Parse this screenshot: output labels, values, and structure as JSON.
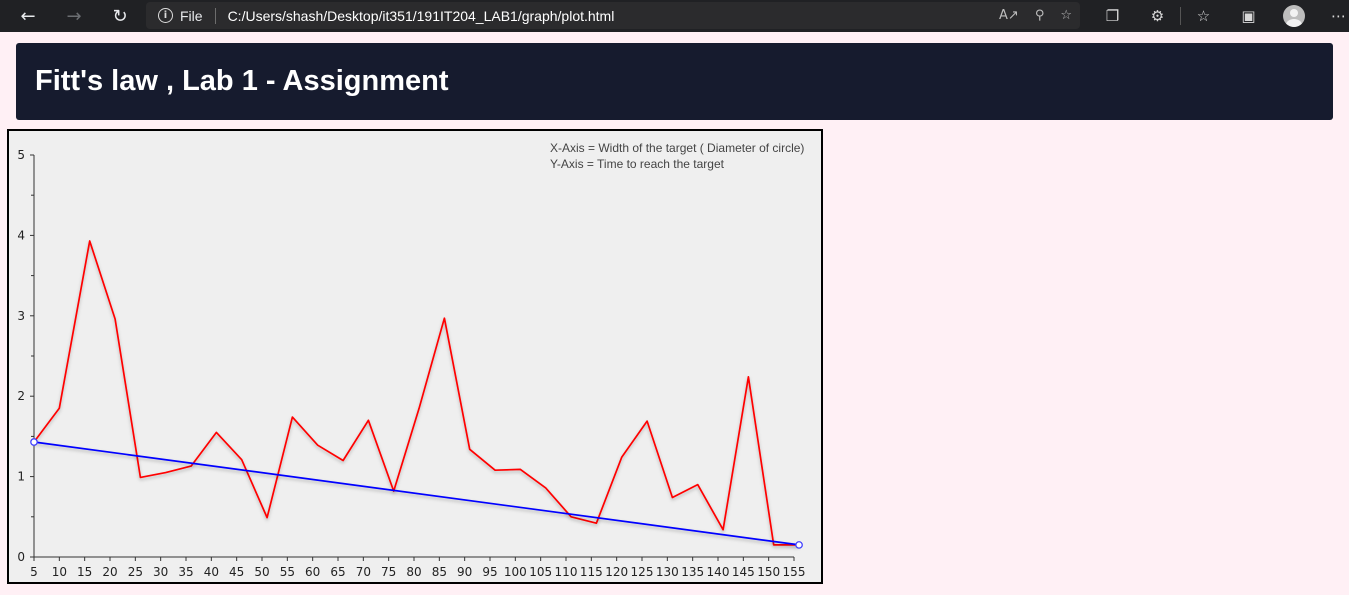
{
  "browser": {
    "file_label": "File",
    "url": "C:/Users/shash/Desktop/it351/191IT204_LAB1/graph/plot.html",
    "icons": [
      "back-icon",
      "forward-icon",
      "refresh-icon",
      "info-icon",
      "read-aloud-icon",
      "zoom-icon",
      "favorite-add-icon",
      "collections-icon",
      "extensions-icon",
      "favorites-icon",
      "tabs-icon",
      "profile-icon",
      "more-icon"
    ]
  },
  "header": {
    "title": "Fitt's law , Lab 1 - Assignment",
    "background": "#161b2e"
  },
  "chart_data": {
    "type": "line",
    "annotations": [
      "X-Axis = Width of the target ( Diameter of circle)",
      "Y-Axis = Time to reach the target"
    ],
    "xlim": [
      5,
      155
    ],
    "ylim": [
      0,
      5
    ],
    "xticks": [
      5,
      10,
      15,
      20,
      25,
      30,
      35,
      40,
      45,
      50,
      55,
      60,
      65,
      70,
      75,
      80,
      85,
      90,
      95,
      100,
      105,
      110,
      115,
      120,
      125,
      130,
      135,
      140,
      145,
      150,
      155
    ],
    "yticks": [
      0,
      1,
      2,
      3,
      4,
      5
    ],
    "series": [
      {
        "color": "#ff0000",
        "x": [
          5,
          10,
          16,
          21,
          26,
          31,
          36,
          41,
          46,
          51,
          56,
          61,
          66,
          71,
          76,
          81,
          86,
          91,
          96,
          101,
          106,
          111,
          116,
          121,
          126,
          131,
          136,
          141,
          146,
          151,
          156
        ],
        "y": [
          1.43,
          1.85,
          3.93,
          2.96,
          0.99,
          1.05,
          1.13,
          1.55,
          1.21,
          0.49,
          1.74,
          1.39,
          1.2,
          1.7,
          0.82,
          1.85,
          2.97,
          1.34,
          1.08,
          1.09,
          0.86,
          0.5,
          0.42,
          1.24,
          1.69,
          0.74,
          0.9,
          0.34,
          2.24,
          0.15,
          0.15
        ]
      },
      {
        "color": "#0000ff",
        "x": [
          5,
          156
        ],
        "y": [
          1.43,
          0.15
        ],
        "markers": true
      }
    ]
  }
}
